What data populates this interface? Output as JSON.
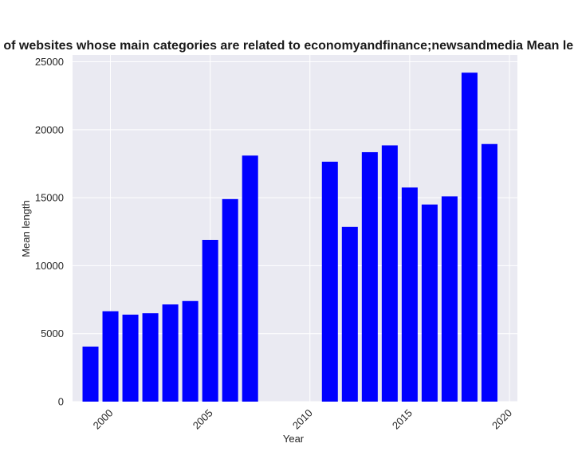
{
  "chart_data": {
    "type": "bar",
    "title": "Mean length of privacy policies of websites whose main categories are related to economyandfinance;newsandmedia Mean length in privacy policies by year",
    "xlabel": "Year",
    "ylabel": "Mean length",
    "x": [
      1999,
      2000,
      2001,
      2002,
      2003,
      2004,
      2005,
      2006,
      2007,
      2011,
      2012,
      2013,
      2014,
      2015,
      2016,
      2017,
      2018,
      2019
    ],
    "values": [
      4050,
      6650,
      6400,
      6500,
      7150,
      7400,
      11900,
      14900,
      18100,
      17650,
      12850,
      18350,
      18850,
      15750,
      14500,
      15100,
      24200,
      18950
    ],
    "xlim": [
      1998.1,
      2020.4
    ],
    "ylim": [
      0,
      25500
    ],
    "xticks": [
      2000,
      2005,
      2010,
      2015,
      2020
    ],
    "yticks": [
      0,
      5000,
      10000,
      15000,
      20000,
      25000
    ],
    "grid": true,
    "colors": {
      "bar": "#0000ff",
      "plot_background": "#eaeaf2",
      "grid": "#ffffff"
    }
  }
}
